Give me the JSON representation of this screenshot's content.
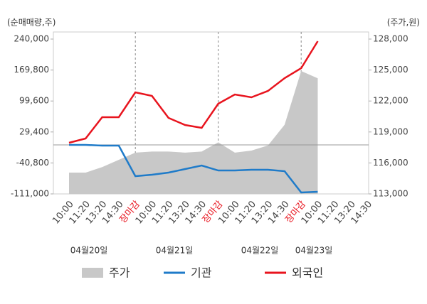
{
  "chart_data": {
    "type": "line",
    "y_label": "(순매매량,주)",
    "y2_label": "(주가,원)",
    "categories": [
      "10:00",
      "11:20",
      "13:20",
      "14:30",
      "장마감",
      "10:00",
      "11:20",
      "13:20",
      "14:30",
      "장마감",
      "10:00",
      "11:20",
      "13:20",
      "14:30",
      "장마감",
      "10:00",
      "11:20",
      "13:20",
      "14:30"
    ],
    "date_labels": [
      "04월20일",
      "04월21일",
      "04월22일",
      "04월23일"
    ],
    "ylim": [
      -111000,
      240000
    ],
    "yticks": [
      {
        "value": 240000,
        "label": "240,000"
      },
      {
        "value": 169800,
        "label": "169,800"
      },
      {
        "value": 99600,
        "label": "99,600"
      },
      {
        "value": 29400,
        "label": "29,400"
      },
      {
        "value": -40800,
        "label": "-40,800"
      },
      {
        "value": -111000,
        "label": "-111,000"
      }
    ],
    "y2lim": [
      113000,
      128000
    ],
    "y2ticks": [
      {
        "value": 128000,
        "label": "128,000"
      },
      {
        "value": 125000,
        "label": "125,000"
      },
      {
        "value": 122000,
        "label": "122,000"
      },
      {
        "value": 119000,
        "label": "119,000"
      },
      {
        "value": 116000,
        "label": "116,000"
      },
      {
        "value": 113000,
        "label": "113,000"
      }
    ],
    "series": [
      {
        "name": "주가",
        "color": "#c8c8c8",
        "axis": "y2",
        "style": "area",
        "values": [
          115060,
          115060,
          115600,
          116300,
          117000,
          117100,
          117100,
          117000,
          117100,
          118000,
          117000,
          117200,
          117700,
          119700,
          124900,
          124200,
          null,
          null,
          null
        ]
      },
      {
        "name": "기관",
        "color": "#1f7bc9",
        "values": [
          100,
          100,
          -1500,
          -1500,
          -70750,
          -67500,
          -62700,
          -54650,
          -46600,
          -57900,
          -57900,
          -56300,
          -56300,
          -59500,
          -107800,
          -106200,
          null,
          null,
          null
        ]
      },
      {
        "name": "외국인",
        "color": "#e8141e",
        "values": [
          4900,
          14600,
          62900,
          62900,
          119200,
          111200,
          61300,
          45200,
          38700,
          93500,
          114400,
          108000,
          122500,
          151400,
          174000,
          235200,
          null,
          null,
          null
        ]
      }
    ]
  }
}
